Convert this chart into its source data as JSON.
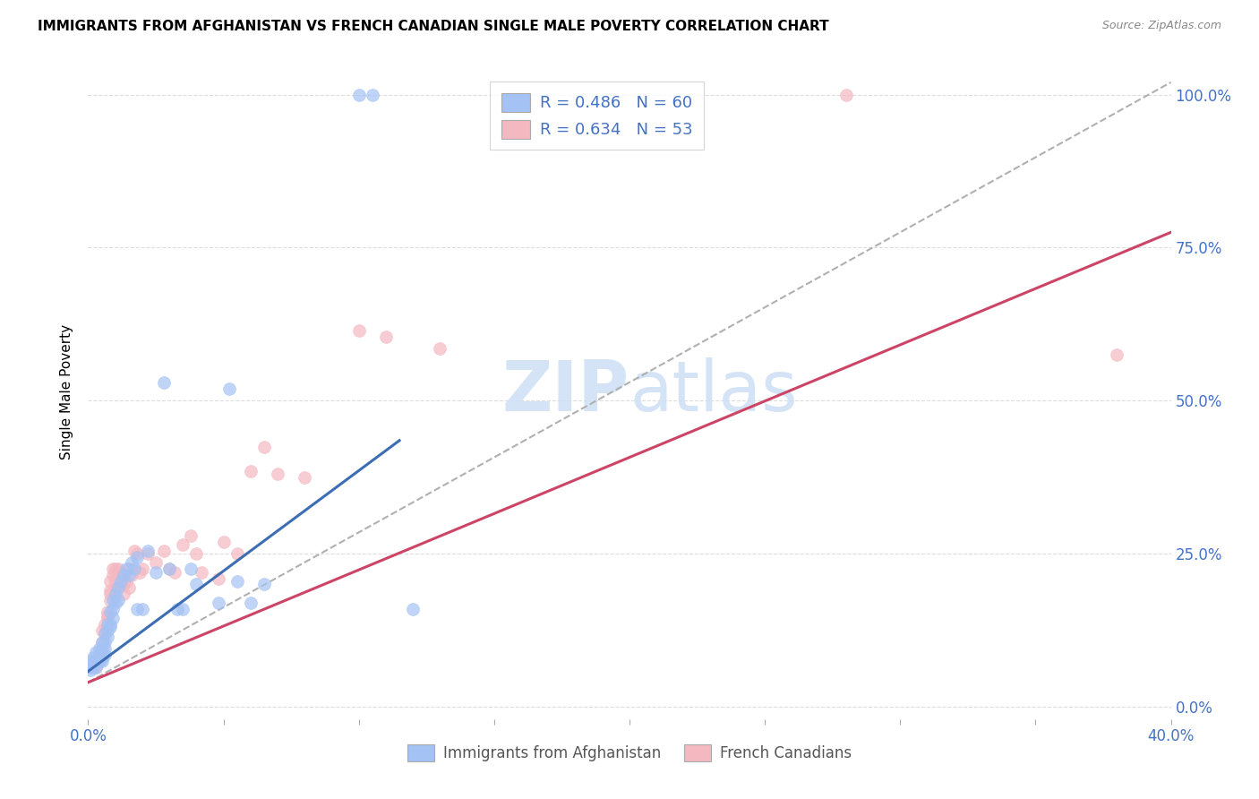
{
  "title": "IMMIGRANTS FROM AFGHANISTAN VS FRENCH CANADIAN SINGLE MALE POVERTY CORRELATION CHART",
  "source": "Source: ZipAtlas.com",
  "ylabel": "Single Male Poverty",
  "ytick_labels": [
    "0.0%",
    "25.0%",
    "50.0%",
    "75.0%",
    "100.0%"
  ],
  "ytick_values": [
    0.0,
    0.25,
    0.5,
    0.75,
    1.0
  ],
  "legend_label1": "Immigrants from Afghanistan",
  "legend_label2": "French Canadians",
  "blue_color": "#a4c2f4",
  "pink_color": "#f4b8c1",
  "blue_line_color": "#3d6eb4",
  "pink_line_color": "#cc4466",
  "dashed_line_color": "#b0b0b0",
  "text_blue": "#4472c4",
  "watermark_color": "#cde0f5",
  "blue_scatter": [
    [
      0.001,
      0.075
    ],
    [
      0.001,
      0.065
    ],
    [
      0.001,
      0.06
    ],
    [
      0.002,
      0.08
    ],
    [
      0.002,
      0.07
    ],
    [
      0.002,
      0.065
    ],
    [
      0.003,
      0.09
    ],
    [
      0.003,
      0.075
    ],
    [
      0.003,
      0.065
    ],
    [
      0.004,
      0.095
    ],
    [
      0.004,
      0.085
    ],
    [
      0.004,
      0.08
    ],
    [
      0.004,
      0.075
    ],
    [
      0.005,
      0.105
    ],
    [
      0.005,
      0.095
    ],
    [
      0.005,
      0.085
    ],
    [
      0.005,
      0.08
    ],
    [
      0.005,
      0.075
    ],
    [
      0.006,
      0.12
    ],
    [
      0.006,
      0.105
    ],
    [
      0.006,
      0.095
    ],
    [
      0.006,
      0.085
    ],
    [
      0.007,
      0.135
    ],
    [
      0.007,
      0.125
    ],
    [
      0.007,
      0.115
    ],
    [
      0.008,
      0.155
    ],
    [
      0.008,
      0.135
    ],
    [
      0.008,
      0.13
    ],
    [
      0.009,
      0.175
    ],
    [
      0.009,
      0.16
    ],
    [
      0.009,
      0.145
    ],
    [
      0.01,
      0.185
    ],
    [
      0.01,
      0.17
    ],
    [
      0.011,
      0.195
    ],
    [
      0.011,
      0.175
    ],
    [
      0.012,
      0.205
    ],
    [
      0.013,
      0.215
    ],
    [
      0.014,
      0.225
    ],
    [
      0.015,
      0.215
    ],
    [
      0.016,
      0.235
    ],
    [
      0.017,
      0.225
    ],
    [
      0.018,
      0.16
    ],
    [
      0.018,
      0.245
    ],
    [
      0.02,
      0.16
    ],
    [
      0.022,
      0.255
    ],
    [
      0.025,
      0.22
    ],
    [
      0.028,
      0.53
    ],
    [
      0.03,
      0.225
    ],
    [
      0.033,
      0.16
    ],
    [
      0.035,
      0.16
    ],
    [
      0.038,
      0.225
    ],
    [
      0.04,
      0.2
    ],
    [
      0.048,
      0.17
    ],
    [
      0.052,
      0.52
    ],
    [
      0.055,
      0.205
    ],
    [
      0.06,
      0.17
    ],
    [
      0.065,
      0.2
    ],
    [
      0.1,
      1.0
    ],
    [
      0.105,
      1.0
    ],
    [
      0.12,
      0.16
    ]
  ],
  "pink_scatter": [
    [
      0.003,
      0.065
    ],
    [
      0.004,
      0.075
    ],
    [
      0.005,
      0.125
    ],
    [
      0.005,
      0.105
    ],
    [
      0.006,
      0.12
    ],
    [
      0.006,
      0.135
    ],
    [
      0.007,
      0.145
    ],
    [
      0.007,
      0.15
    ],
    [
      0.007,
      0.155
    ],
    [
      0.008,
      0.185
    ],
    [
      0.008,
      0.19
    ],
    [
      0.008,
      0.175
    ],
    [
      0.008,
      0.205
    ],
    [
      0.009,
      0.215
    ],
    [
      0.009,
      0.225
    ],
    [
      0.01,
      0.225
    ],
    [
      0.01,
      0.205
    ],
    [
      0.01,
      0.195
    ],
    [
      0.011,
      0.22
    ],
    [
      0.011,
      0.225
    ],
    [
      0.012,
      0.22
    ],
    [
      0.012,
      0.205
    ],
    [
      0.013,
      0.2
    ],
    [
      0.013,
      0.185
    ],
    [
      0.014,
      0.205
    ],
    [
      0.015,
      0.195
    ],
    [
      0.015,
      0.225
    ],
    [
      0.016,
      0.215
    ],
    [
      0.017,
      0.255
    ],
    [
      0.018,
      0.25
    ],
    [
      0.019,
      0.22
    ],
    [
      0.02,
      0.225
    ],
    [
      0.022,
      0.25
    ],
    [
      0.025,
      0.235
    ],
    [
      0.028,
      0.255
    ],
    [
      0.03,
      0.225
    ],
    [
      0.032,
      0.22
    ],
    [
      0.035,
      0.265
    ],
    [
      0.038,
      0.28
    ],
    [
      0.04,
      0.25
    ],
    [
      0.042,
      0.22
    ],
    [
      0.048,
      0.21
    ],
    [
      0.05,
      0.27
    ],
    [
      0.055,
      0.25
    ],
    [
      0.06,
      0.385
    ],
    [
      0.065,
      0.425
    ],
    [
      0.07,
      0.38
    ],
    [
      0.08,
      0.375
    ],
    [
      0.1,
      0.615
    ],
    [
      0.11,
      0.605
    ],
    [
      0.13,
      0.585
    ],
    [
      0.28,
      1.0
    ],
    [
      0.38,
      0.575
    ]
  ],
  "blue_trendline_x": [
    0.0,
    0.115
  ],
  "blue_trendline_y": [
    0.058,
    0.435
  ],
  "pink_trendline_x": [
    0.0,
    0.4
  ],
  "pink_trendline_y": [
    0.04,
    0.775
  ],
  "dashed_trendline_x": [
    0.0,
    0.4
  ],
  "dashed_trendline_y": [
    0.04,
    1.02
  ],
  "xlim": [
    0.0,
    0.4
  ],
  "ylim": [
    -0.02,
    1.05
  ],
  "background_color": "#ffffff",
  "grid_color": "#dddddd"
}
